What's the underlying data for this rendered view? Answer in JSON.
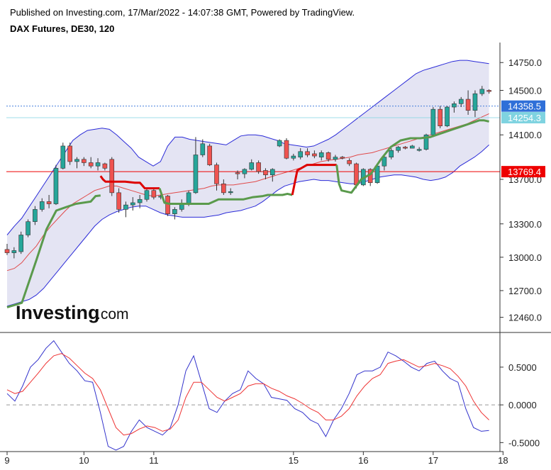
{
  "header": {
    "published": "Published on Investing.com, 17/Mar/2022 - 14:07:38 GMT, Powered by TradingView.",
    "symbol": "DAX Futures, DE30, 120"
  },
  "watermark": {
    "brand": "Investing",
    "suffix": ".com"
  },
  "colors": {
    "up": "#26a69a",
    "down": "#ef5350",
    "band": "#2b2bd8",
    "bandFill": "#e4e4f3",
    "basis": "#e04a4a",
    "supertrend_up": "#5a9a4c",
    "supertrend_down": "#dd0000",
    "stoch_k": "#3333cc",
    "stoch_d": "#ee3333",
    "price_tag": "#2f6fd8",
    "prev_tag": "#7fd3e0",
    "level_tag": "#ee0000"
  },
  "chart_data": [
    {
      "type": "candlestick",
      "title": "DAX Futures, DE30, 120",
      "ylim": [
        12330,
        14930
      ],
      "y_ticks": [
        12460,
        12700,
        13000,
        13300,
        13700,
        14100,
        14500,
        14750
      ],
      "y_tick_labels": [
        "12460.0",
        "12700.0",
        "13000.0",
        "13300.0",
        "13700.0",
        "14100.0",
        "14500.0",
        "14750.0"
      ],
      "x_labels": [
        {
          "label": "9",
          "index": 0
        },
        {
          "label": "10",
          "index": 11
        },
        {
          "label": "11",
          "index": 21
        },
        {
          "label": "15",
          "index": 41
        },
        {
          "label": "16",
          "index": 51
        },
        {
          "label": "17",
          "index": 61
        },
        {
          "label": "18",
          "index": 71
        }
      ],
      "ohlc": [
        [
          13070,
          13120,
          13020,
          13040
        ],
        [
          13040,
          13090,
          12990,
          13060
        ],
        [
          13050,
          13230,
          13030,
          13200
        ],
        [
          13200,
          13340,
          13180,
          13320
        ],
        [
          13320,
          13460,
          13290,
          13430
        ],
        [
          13430,
          13530,
          13410,
          13500
        ],
        [
          13500,
          13560,
          13440,
          13480
        ],
        [
          13480,
          13830,
          13470,
          13800
        ],
        [
          13800,
          14030,
          13790,
          14000
        ],
        [
          14000,
          14030,
          13830,
          13860
        ],
        [
          13860,
          13900,
          13800,
          13880
        ],
        [
          13880,
          13900,
          13820,
          13850
        ],
        [
          13850,
          13900,
          13800,
          13820
        ],
        [
          13820,
          13890,
          13780,
          13850
        ],
        [
          13840,
          13850,
          13780,
          13800
        ],
        [
          13880,
          13900,
          13550,
          13580
        ],
        [
          13580,
          13620,
          13400,
          13430
        ],
        [
          13430,
          13500,
          13360,
          13470
        ],
        [
          13470,
          13540,
          13420,
          13490
        ],
        [
          13490,
          13560,
          13440,
          13520
        ],
        [
          13520,
          13620,
          13500,
          13600
        ],
        [
          13600,
          13620,
          13520,
          13540
        ],
        [
          13540,
          13560,
          13520,
          13550
        ],
        [
          13550,
          13560,
          13370,
          13390
        ],
        [
          13390,
          13450,
          13340,
          13430
        ],
        [
          13430,
          13520,
          13410,
          13480
        ],
        [
          13480,
          13600,
          13460,
          13580
        ],
        [
          13580,
          14080,
          13570,
          13920
        ],
        [
          13920,
          14060,
          13900,
          14020
        ],
        [
          14000,
          14020,
          13820,
          13830
        ],
        [
          13830,
          13850,
          13600,
          13660
        ],
        [
          13660,
          13700,
          13560,
          13580
        ],
        [
          13580,
          13620,
          13560,
          13590
        ],
        [
          13760,
          13780,
          13700,
          13750
        ],
        [
          13750,
          13800,
          13710,
          13790
        ],
        [
          13790,
          13880,
          13780,
          13850
        ],
        [
          13850,
          13870,
          13750,
          13770
        ],
        [
          13780,
          13800,
          13700,
          13740
        ],
        [
          13740,
          13800,
          13680,
          13790
        ],
        [
          14000,
          14060,
          13990,
          14050
        ],
        [
          14050,
          14070,
          13880,
          13890
        ],
        [
          13890,
          13930,
          13870,
          13910
        ],
        [
          13900,
          13980,
          13880,
          13950
        ],
        [
          13950,
          13980,
          13900,
          13920
        ],
        [
          13930,
          13960,
          13890,
          13910
        ],
        [
          13900,
          13960,
          13870,
          13940
        ],
        [
          13940,
          13950,
          13860,
          13880
        ],
        [
          13880,
          13920,
          13860,
          13900
        ],
        [
          13900,
          13910,
          13880,
          13890
        ],
        [
          13870,
          13890,
          13820,
          13840
        ],
        [
          13840,
          13850,
          13620,
          13650
        ],
        [
          13650,
          13800,
          13640,
          13790
        ],
        [
          13790,
          13800,
          13640,
          13670
        ],
        [
          13670,
          13840,
          13660,
          13820
        ],
        [
          13820,
          13920,
          13780,
          13900
        ],
        [
          13900,
          13980,
          13880,
          13960
        ],
        [
          13960,
          14000,
          13940,
          13990
        ],
        [
          13990,
          14000,
          13970,
          13980
        ],
        [
          13980,
          14010,
          13980,
          14000
        ],
        [
          13960,
          13990,
          13950,
          13970
        ],
        [
          13970,
          14110,
          13960,
          14100
        ],
        [
          14100,
          14350,
          14080,
          14330
        ],
        [
          14330,
          14360,
          14160,
          14180
        ],
        [
          14180,
          14360,
          14170,
          14350
        ],
        [
          14350,
          14400,
          14300,
          14380
        ],
        [
          14380,
          14440,
          14350,
          14420
        ],
        [
          14420,
          14500,
          14280,
          14320
        ],
        [
          14320,
          14500,
          14260,
          14470
        ],
        [
          14470,
          14540,
          14450,
          14510
        ],
        [
          14500,
          14510,
          14470,
          14490
        ]
      ],
      "bollinger": {
        "upper": [
          13200,
          13280,
          13350,
          13450,
          13550,
          13650,
          13750,
          13850,
          13950,
          14050,
          14100,
          14140,
          14150,
          14160,
          14150,
          14100,
          14040,
          13980,
          13900,
          13860,
          13820,
          13860,
          14000,
          14080,
          14080,
          14060,
          14050,
          14040,
          14030,
          14020,
          14010,
          14050,
          14090,
          14100,
          14100,
          14090,
          14070,
          14050,
          14020,
          14010,
          14000,
          13990,
          14000,
          14030,
          14060,
          14100,
          14150,
          14200,
          14250,
          14300,
          14350,
          14400,
          14450,
          14500,
          14550,
          14600,
          14650,
          14680,
          14700,
          14720,
          14740,
          14760,
          14770,
          14770,
          14760,
          14750,
          14740
        ],
        "lower": [
          12560,
          12580,
          12600,
          12620,
          12660,
          12720,
          12800,
          12880,
          12960,
          13040,
          13120,
          13200,
          13280,
          13340,
          13380,
          13410,
          13430,
          13450,
          13460,
          13460,
          13430,
          13400,
          13380,
          13370,
          13360,
          13360,
          13360,
          13360,
          13370,
          13380,
          13400,
          13410,
          13420,
          13440,
          13460,
          13500,
          13550,
          13600,
          13640,
          13660,
          13680,
          13690,
          13700,
          13690,
          13690,
          13680,
          13670,
          13660,
          13660,
          13680,
          13700,
          13720,
          13730,
          13740,
          13740,
          13730,
          13720,
          13700,
          13690,
          13700,
          13720,
          13760,
          13820,
          13860,
          13900,
          13950,
          14010
        ],
        "basis": [
          12880,
          12900,
          12950,
          13030,
          13100,
          13200,
          13280,
          13350,
          13420,
          13480,
          13520,
          13560,
          13600,
          13620,
          13640,
          13640,
          13620,
          13600,
          13580,
          13560,
          13550,
          13560,
          13570,
          13580,
          13590,
          13600,
          13610,
          13620,
          13640,
          13650,
          13650,
          13650,
          13660,
          13670,
          13680,
          13700,
          13720,
          13740,
          13760,
          13780,
          13800,
          13820,
          13840,
          13860,
          13870,
          13880,
          13890,
          13900,
          13920,
          13930,
          13940,
          13960,
          13980,
          14000,
          14020,
          14040,
          14060,
          14080,
          14100,
          14120,
          14140,
          14160,
          14180,
          14200,
          14230,
          14260,
          14290
        ]
      },
      "supertrend": [
        {
          "side": "up",
          "points": [
            [
              0,
              12550
            ],
            [
              3,
              12590
            ],
            [
              6,
              12980
            ],
            [
              8,
              13250
            ],
            [
              10,
              13420
            ],
            [
              12,
              13450
            ],
            [
              14,
              13480
            ],
            [
              17,
              13500
            ],
            [
              18,
              13550
            ],
            [
              19,
              13555
            ]
          ]
        },
        {
          "side": "down",
          "points": [
            [
              19,
              13730
            ],
            [
              19.5,
              13700
            ],
            [
              20,
              13680
            ],
            [
              22,
              13680
            ],
            [
              23,
              13680
            ],
            [
              24,
              13680
            ],
            [
              26,
              13670
            ],
            [
              27,
              13670
            ],
            [
              28,
              13620
            ],
            [
              29,
              13620
            ],
            [
              30,
              13620
            ],
            [
              31,
              13620
            ]
          ]
        },
        {
          "side": "up",
          "points": [
            [
              31,
              13620
            ],
            [
              32,
              13490
            ],
            [
              33,
              13480
            ],
            [
              36,
              13480
            ],
            [
              38,
              13480
            ],
            [
              39,
              13480
            ],
            [
              41,
              13480
            ],
            [
              42,
              13500
            ],
            [
              43,
              13520
            ],
            [
              45,
              13520
            ],
            [
              47,
              13520
            ],
            [
              48,
              13520
            ],
            [
              50,
              13540
            ],
            [
              52,
              13550
            ],
            [
              53,
              13560
            ],
            [
              54,
              13560
            ],
            [
              56,
              13560
            ],
            [
              57,
              13570
            ],
            [
              58,
              13560
            ]
          ]
        },
        {
          "side": "down",
          "points": [
            [
              58,
              13560
            ],
            [
              59,
              13780
            ],
            [
              61,
              13830
            ],
            [
              63,
              13830
            ],
            [
              65,
              13830
            ],
            [
              66,
              13830
            ],
            [
              67,
              13830
            ]
          ]
        },
        {
          "side": "up",
          "points": [
            [
              67,
              13830
            ],
            [
              67.5,
              13660
            ],
            [
              68,
              13600
            ],
            [
              70,
              13580
            ],
            [
              72,
              13700
            ],
            [
              74,
              13750
            ],
            [
              76,
              13880
            ],
            [
              78,
              13990
            ],
            [
              80,
              14050
            ],
            [
              82,
              14070
            ],
            [
              84,
              14070
            ],
            [
              86,
              14080
            ],
            [
              88,
              14110
            ],
            [
              90,
              14140
            ],
            [
              92,
              14170
            ],
            [
              94,
              14200
            ],
            [
              96,
              14230
            ],
            [
              97,
              14230
            ],
            [
              98,
              14220
            ]
          ]
        }
      ],
      "levels": [
        {
          "value": 14358.5,
          "label": "14358.5",
          "style": "dotted",
          "tag": "price_tag"
        },
        {
          "value": 14254.3,
          "label": "14254.3",
          "style": "solid-thin",
          "tag": "prev_tag"
        },
        {
          "value": 13769.4,
          "label": "13769.4",
          "style": "solid",
          "tag": "level_tag"
        }
      ]
    },
    {
      "type": "line",
      "title": "",
      "ylim": [
        -0.6,
        0.95
      ],
      "y_ticks": [
        0.5,
        0.0,
        -0.5
      ],
      "y_tick_labels": [
        "0.5000",
        "0.0000",
        "-0.5000"
      ],
      "zero_line": true,
      "series": [
        {
          "name": "",
          "values": [
            0.15,
            0.05,
            0.25,
            0.5,
            0.6,
            0.75,
            0.85,
            0.7,
            0.55,
            0.45,
            0.32,
            0.3,
            -0.1,
            -0.55,
            -0.6,
            -0.55,
            -0.35,
            -0.2,
            -0.3,
            -0.35,
            -0.4,
            -0.3,
            0.0,
            0.45,
            0.65,
            0.3,
            -0.05,
            -0.1,
            0.05,
            0.15,
            0.2,
            0.45,
            0.35,
            0.28,
            0.1,
            0.08,
            0.06,
            -0.05,
            -0.1,
            -0.2,
            -0.25,
            -0.42,
            -0.2,
            -0.05,
            0.15,
            0.4,
            0.45,
            0.45,
            0.5,
            0.7,
            0.65,
            0.58,
            0.5,
            0.45,
            0.55,
            0.58,
            0.45,
            0.35,
            0.3,
            -0.05,
            -0.3,
            -0.35,
            -0.34
          ]
        },
        {
          "name": "",
          "values": [
            0.2,
            0.15,
            0.18,
            0.3,
            0.42,
            0.55,
            0.65,
            0.68,
            0.62,
            0.52,
            0.42,
            0.35,
            0.2,
            -0.05,
            -0.3,
            -0.4,
            -0.38,
            -0.32,
            -0.28,
            -0.3,
            -0.35,
            -0.32,
            -0.2,
            0.1,
            0.3,
            0.3,
            0.2,
            0.1,
            0.05,
            0.1,
            0.15,
            0.25,
            0.28,
            0.28,
            0.22,
            0.18,
            0.12,
            0.08,
            0.02,
            -0.05,
            -0.1,
            -0.2,
            -0.2,
            -0.15,
            -0.05,
            0.12,
            0.25,
            0.35,
            0.4,
            0.55,
            0.58,
            0.6,
            0.55,
            0.5,
            0.52,
            0.55,
            0.52,
            0.48,
            0.38,
            0.25,
            0.05,
            -0.1,
            -0.2
          ]
        }
      ]
    }
  ]
}
